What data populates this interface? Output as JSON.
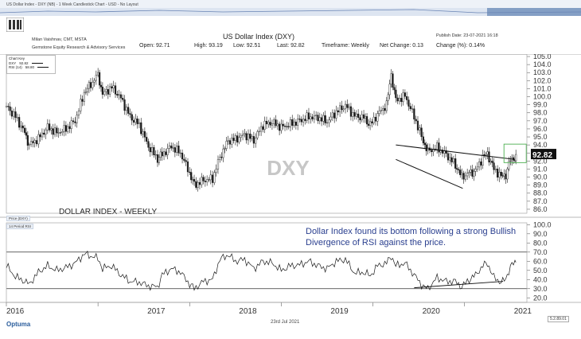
{
  "nav": {
    "text": "US Dollar Index - DXY (NB) - 1 Week Candlestick Chart - USD - No Layout"
  },
  "header": {
    "author": "Milan Vaishnav, CMT, MSTA",
    "firm": "Gemstone Equity Research & Advisory Services",
    "title": "US Dollar Index (DXY)",
    "publish_date": "Publish Date: 23-07-2021 16:18",
    "open": "Open: 92.71",
    "high": "High: 93.19",
    "low": "Low: 92.51",
    "last": "Last: 92.82",
    "timeframe": "Timeframe: Weekly",
    "net_change": "Net Change: 0.13",
    "change_pct": "Change (%): 0.14%"
  },
  "legend": {
    "title": "Chart Key",
    "row1": "DXY",
    "row1_val": "92.82",
    "row2": "RSI (14)",
    "row2_val": "58.80"
  },
  "panels": {
    "price_tag": "Price (DXY)",
    "rsi_tag": "14 Period RSI"
  },
  "footer": {
    "date": "23rd Jul 2021",
    "version": "5.2.89.01",
    "brand": "Optuma"
  },
  "colors": {
    "candle": "#1a1a1a",
    "accent": "#2a3f8f",
    "box": "#4caf50",
    "watermark": "#c7c7c7"
  },
  "chart_data": [
    {
      "type": "candlestick",
      "title": "US Dollar Index (DXY)",
      "watermark": "DXY",
      "label": "DOLLAR INDEX - WEEKLY",
      "x_ticks": [
        "2016",
        "2017",
        "2018",
        "2019",
        "2020",
        "2021"
      ],
      "y_ticks": [
        86,
        87,
        88,
        89,
        90,
        91,
        92,
        93,
        94,
        95,
        96,
        97,
        98,
        99,
        100,
        101,
        102,
        103,
        104,
        105
      ],
      "ylim": [
        85.5,
        105.3
      ],
      "last_value": 92.82,
      "series": [
        {
          "values": [
            [
              2016.0,
              98.8
            ],
            [
              2016.1,
              97.5
            ],
            [
              2016.2,
              95.5
            ],
            [
              2016.25,
              94.0
            ],
            [
              2016.35,
              94.8
            ],
            [
              2016.45,
              96.2
            ],
            [
              2016.55,
              95.5
            ],
            [
              2016.65,
              96.0
            ],
            [
              2016.75,
              97.0
            ],
            [
              2016.85,
              100.5
            ],
            [
              2016.92,
              101.5
            ],
            [
              2017.0,
              102.8
            ],
            [
              2017.05,
              100.3
            ],
            [
              2017.15,
              101.2
            ],
            [
              2017.25,
              99.8
            ],
            [
              2017.35,
              97.5
            ],
            [
              2017.45,
              96.5
            ],
            [
              2017.55,
              93.8
            ],
            [
              2017.65,
              92.3
            ],
            [
              2017.7,
              92.8
            ],
            [
              2017.8,
              93.8
            ],
            [
              2017.9,
              93.0
            ],
            [
              2018.0,
              90.5
            ],
            [
              2018.05,
              89.0
            ],
            [
              2018.15,
              89.6
            ],
            [
              2018.25,
              89.8
            ],
            [
              2018.33,
              92.5
            ],
            [
              2018.42,
              94.5
            ],
            [
              2018.5,
              94.7
            ],
            [
              2018.6,
              95.3
            ],
            [
              2018.7,
              94.6
            ],
            [
              2018.8,
              96.5
            ],
            [
              2018.9,
              96.8
            ],
            [
              2019.0,
              96.2
            ],
            [
              2019.1,
              96.6
            ],
            [
              2019.2,
              97.0
            ],
            [
              2019.3,
              97.5
            ],
            [
              2019.4,
              97.4
            ],
            [
              2019.5,
              96.9
            ],
            [
              2019.6,
              98.1
            ],
            [
              2019.7,
              98.9
            ],
            [
              2019.8,
              97.6
            ],
            [
              2019.9,
              97.4
            ],
            [
              2019.97,
              96.5
            ],
            [
              2020.05,
              97.8
            ],
            [
              2020.15,
              99.0
            ],
            [
              2020.2,
              102.8
            ],
            [
              2020.25,
              99.5
            ],
            [
              2020.35,
              100.1
            ],
            [
              2020.45,
              97.5
            ],
            [
              2020.55,
              94.4
            ],
            [
              2020.6,
              93.2
            ],
            [
              2020.7,
              93.7
            ],
            [
              2020.8,
              92.8
            ],
            [
              2020.9,
              91.5
            ],
            [
              2020.97,
              90.0
            ],
            [
              2021.05,
              90.5
            ],
            [
              2021.12,
              90.8
            ],
            [
              2021.2,
              92.5
            ],
            [
              2021.25,
              92.9
            ],
            [
              2021.32,
              91.0
            ],
            [
              2021.4,
              90.1
            ],
            [
              2021.45,
              90.3
            ],
            [
              2021.5,
              92.2
            ],
            [
              2021.55,
              92.4
            ],
            [
              2021.56,
              92.82
            ]
          ]
        }
      ],
      "annotations": [
        "falling wedge trendlines 2020-2021",
        "breakout box around 92.8"
      ]
    },
    {
      "type": "line",
      "name": "14 Period RSI",
      "y_ticks": [
        20,
        30,
        40,
        50,
        60,
        70,
        80,
        90,
        100
      ],
      "ylim": [
        15,
        102
      ],
      "reference_lines": [
        70,
        30
      ],
      "annotation": "Dollar Index found its bottom following a strong Bullish Divergence of RSI against the price.",
      "series": [
        {
          "values": [
            [
              2016.0,
              55
            ],
            [
              2016.1,
              43
            ],
            [
              2016.2,
              38
            ],
            [
              2016.25,
              35
            ],
            [
              2016.35,
              48
            ],
            [
              2016.45,
              55
            ],
            [
              2016.55,
              50
            ],
            [
              2016.65,
              53
            ],
            [
              2016.75,
              58
            ],
            [
              2016.85,
              68
            ],
            [
              2016.92,
              66
            ],
            [
              2017.0,
              63
            ],
            [
              2017.05,
              52
            ],
            [
              2017.15,
              55
            ],
            [
              2017.25,
              45
            ],
            [
              2017.35,
              38
            ],
            [
              2017.45,
              37
            ],
            [
              2017.55,
              33
            ],
            [
              2017.65,
              32
            ],
            [
              2017.7,
              45
            ],
            [
              2017.8,
              52
            ],
            [
              2017.9,
              48
            ],
            [
              2018.0,
              35
            ],
            [
              2018.05,
              30
            ],
            [
              2018.15,
              38
            ],
            [
              2018.25,
              40
            ],
            [
              2018.33,
              62
            ],
            [
              2018.42,
              67
            ],
            [
              2018.5,
              60
            ],
            [
              2018.6,
              62
            ],
            [
              2018.7,
              52
            ],
            [
              2018.8,
              60
            ],
            [
              2018.9,
              58
            ],
            [
              2019.0,
              50
            ],
            [
              2019.1,
              55
            ],
            [
              2019.2,
              56
            ],
            [
              2019.3,
              60
            ],
            [
              2019.4,
              55
            ],
            [
              2019.5,
              52
            ],
            [
              2019.6,
              60
            ],
            [
              2019.7,
              62
            ],
            [
              2019.8,
              47
            ],
            [
              2019.9,
              48
            ],
            [
              2019.97,
              44
            ],
            [
              2020.05,
              55
            ],
            [
              2020.15,
              58
            ],
            [
              2020.2,
              66
            ],
            [
              2020.25,
              55
            ],
            [
              2020.35,
              58
            ],
            [
              2020.45,
              45
            ],
            [
              2020.55,
              32
            ],
            [
              2020.6,
              30
            ],
            [
              2020.7,
              42
            ],
            [
              2020.8,
              38
            ],
            [
              2020.9,
              38
            ],
            [
              2020.97,
              32
            ],
            [
              2021.05,
              40
            ],
            [
              2021.12,
              45
            ],
            [
              2021.2,
              55
            ],
            [
              2021.25,
              58
            ],
            [
              2021.32,
              42
            ],
            [
              2021.4,
              37
            ],
            [
              2021.45,
              40
            ],
            [
              2021.5,
              55
            ],
            [
              2021.55,
              58
            ],
            [
              2021.56,
              58.8
            ]
          ]
        }
      ],
      "annotations": [
        "rising support line on RSI 2020-2021"
      ]
    }
  ]
}
